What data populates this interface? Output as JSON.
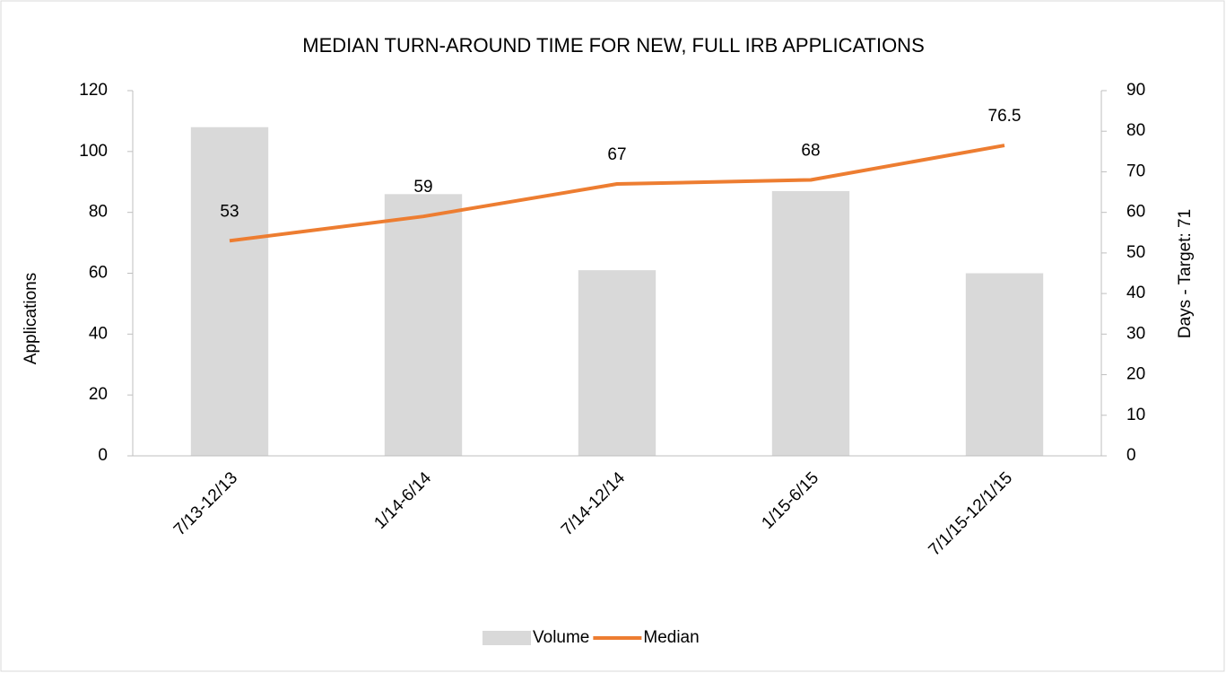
{
  "chart_data": {
    "type": "bar",
    "title": "MEDIAN TURN-AROUND TIME FOR NEW, FULL IRB APPLICATIONS",
    "categories": [
      "7/13-12/13",
      "1/14-6/14",
      "7/14-12/14",
      "1/15-6/15",
      "7/1/15-12/1/15"
    ],
    "series": [
      {
        "name": "Volume",
        "type": "bar",
        "color": "#d9d9d9",
        "values": [
          108,
          86,
          61,
          87,
          60
        ]
      },
      {
        "name": "Median",
        "type": "line",
        "axis": "y2",
        "color": "#ed7d31",
        "values": [
          53,
          59,
          67,
          68,
          76.5
        ]
      }
    ],
    "y_label": "Applications",
    "y2_label": "Days - Target: 71",
    "ylim": [
      0,
      120
    ],
    "yticks": [
      0,
      20,
      40,
      60,
      80,
      100,
      120
    ],
    "y2lim": [
      0,
      90
    ],
    "y2ticks": [
      0,
      10,
      20,
      30,
      40,
      50,
      60,
      70,
      80,
      90
    ],
    "legend": "bottom"
  }
}
